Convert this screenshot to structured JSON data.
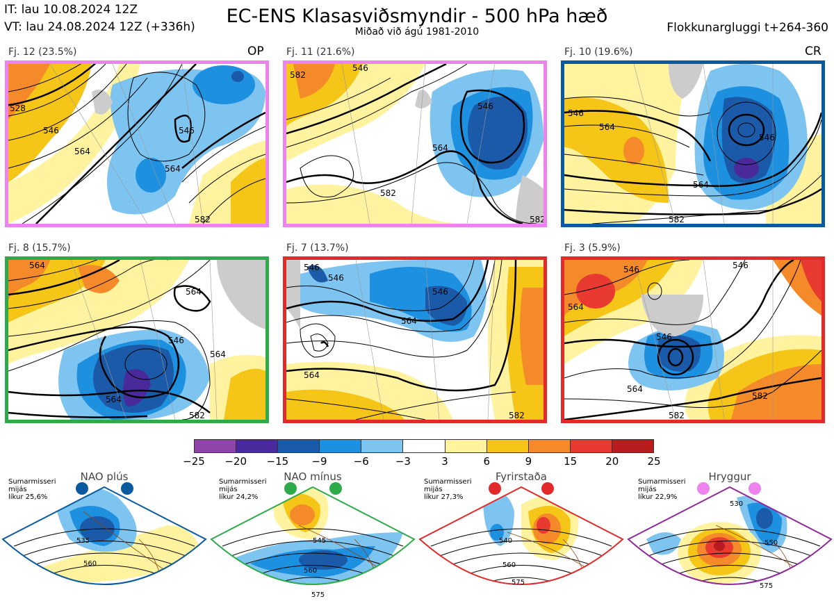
{
  "header": {
    "init_time": "IT: lau 10.08.2024 12Z",
    "valid_time": "VT: lau 24.08.2024 12Z  (+336h)",
    "title": "EC-ENS Klasasviðsmyndir - 500 hPa hæð",
    "subtitle": "Miðað við ágú 1981-2010",
    "window": "Flokkunargluggi t+264-360"
  },
  "panels": [
    {
      "label": "Fj. 12 (23.5%)",
      "tag": "OP",
      "border_color": "#ee82ee",
      "contour_labels": [
        "528",
        "546",
        "564",
        "546",
        "564",
        "582"
      ]
    },
    {
      "label": "Fj. 11 (21.6%)",
      "tag": "",
      "border_color": "#ee82ee",
      "contour_labels": [
        "582",
        "546",
        "546",
        "564",
        "582",
        "582"
      ]
    },
    {
      "label": "Fj. 10 (19.6%)",
      "tag": "CR",
      "border_color": "#0a5aa0",
      "contour_labels": [
        "546",
        "564",
        "546",
        "564",
        "582"
      ]
    },
    {
      "label": "Fj. 8 (15.7%)",
      "tag": "",
      "border_color": "#2eaa4a",
      "contour_labels": [
        "564",
        "564",
        "546",
        "564",
        "564",
        "582"
      ]
    },
    {
      "label": "Fj. 7 (13.7%)",
      "tag": "",
      "border_color": "#e22a2a",
      "contour_labels": [
        "546",
        "546",
        "546",
        "564",
        "564",
        "582"
      ]
    },
    {
      "label": "Fj. 3 (5.9%)",
      "tag": "",
      "border_color": "#e22a2a",
      "contour_labels": [
        "546",
        "546",
        "564",
        "546",
        "564",
        "582",
        "582"
      ]
    }
  ],
  "colorbar": {
    "ticks": [
      "−25",
      "−20",
      "−15",
      "−9",
      "−6",
      "−3",
      "3",
      "6",
      "9",
      "15",
      "20",
      "25"
    ],
    "colors": [
      "#8e44a8",
      "#4a2a9a",
      "#1a5aa8",
      "#1e90e0",
      "#7ec4f0",
      "#ffffff",
      "#fff3a0",
      "#f5c518",
      "#f58a2a",
      "#e83a30",
      "#b81c1c"
    ]
  },
  "regimes": [
    {
      "name": "NAO plús",
      "stats": [
        "Sumarmisseri",
        "mijás",
        "líkur 25,6%"
      ],
      "color": "#0a5aa0",
      "contour_labels": [
        "535",
        "560"
      ]
    },
    {
      "name": "NAO mínus",
      "stats": [
        "Sumarmisseri",
        "mijás",
        "líkur 24,2%"
      ],
      "color": "#2eaa4a",
      "contour_labels": [
        "545",
        "560",
        "575"
      ]
    },
    {
      "name": "Fyrirstaða",
      "stats": [
        "Sumarmisseri",
        "mijás",
        "líkur 27,3%"
      ],
      "color": "#e22a2a",
      "contour_labels": [
        "540",
        "560",
        "575"
      ]
    },
    {
      "name": "Hryggur",
      "stats": [
        "Sumarmisseri",
        "mijás",
        "líkur 22,9%"
      ],
      "color": "#ee82ee",
      "contour_labels": [
        "530",
        "550",
        "575"
      ]
    }
  ]
}
